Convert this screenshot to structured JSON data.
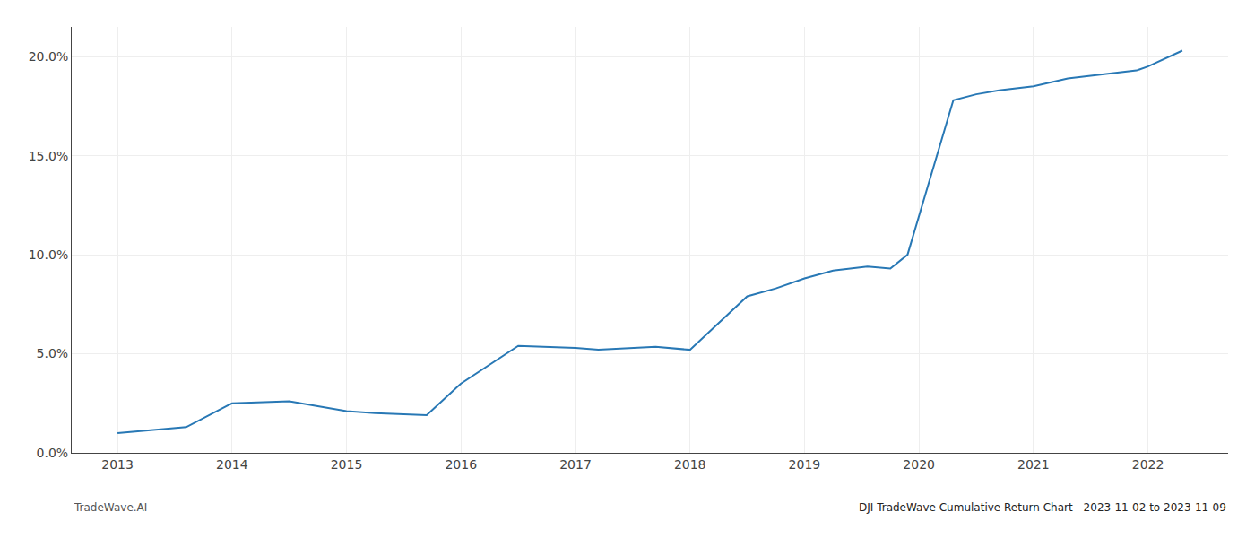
{
  "chart_data": {
    "type": "line",
    "x": [
      2013,
      2013.6,
      2014,
      2014.5,
      2015,
      2015.25,
      2015.7,
      2016,
      2016.5,
      2017,
      2017.2,
      2017.7,
      2018,
      2018.5,
      2018.75,
      2019,
      2019.25,
      2019.55,
      2019.75,
      2019.9,
      2020.3,
      2020.5,
      2020.7,
      2021,
      2021.3,
      2021.6,
      2021.9,
      2022,
      2022.3
    ],
    "values": [
      1.0,
      1.3,
      2.5,
      2.6,
      2.1,
      2.0,
      1.9,
      3.5,
      5.4,
      5.3,
      5.2,
      5.35,
      5.2,
      7.9,
      8.3,
      8.8,
      9.2,
      9.4,
      9.3,
      10.0,
      17.8,
      18.1,
      18.3,
      18.5,
      18.9,
      19.1,
      19.3,
      19.5,
      20.3
    ],
    "color": "#2878b5",
    "xlim": [
      2012.6,
      2022.7
    ],
    "ylim": [
      0.0,
      21.5
    ],
    "xticks": [
      2013,
      2014,
      2015,
      2016,
      2017,
      2018,
      2019,
      2020,
      2021,
      2022
    ],
    "yticks": [
      {
        "value": 0.0,
        "label": "0.0%"
      },
      {
        "value": 5.0,
        "label": "5.0%"
      },
      {
        "value": 10.0,
        "label": "10.0%"
      },
      {
        "value": 15.0,
        "label": "15.0%"
      },
      {
        "value": 20.0,
        "label": "20.0%"
      }
    ],
    "grid": true,
    "annotations": [
      "TradeWave.AI",
      "DJI TradeWave Cumulative Return Chart - 2023-11-02 to 2023-11-09"
    ]
  }
}
